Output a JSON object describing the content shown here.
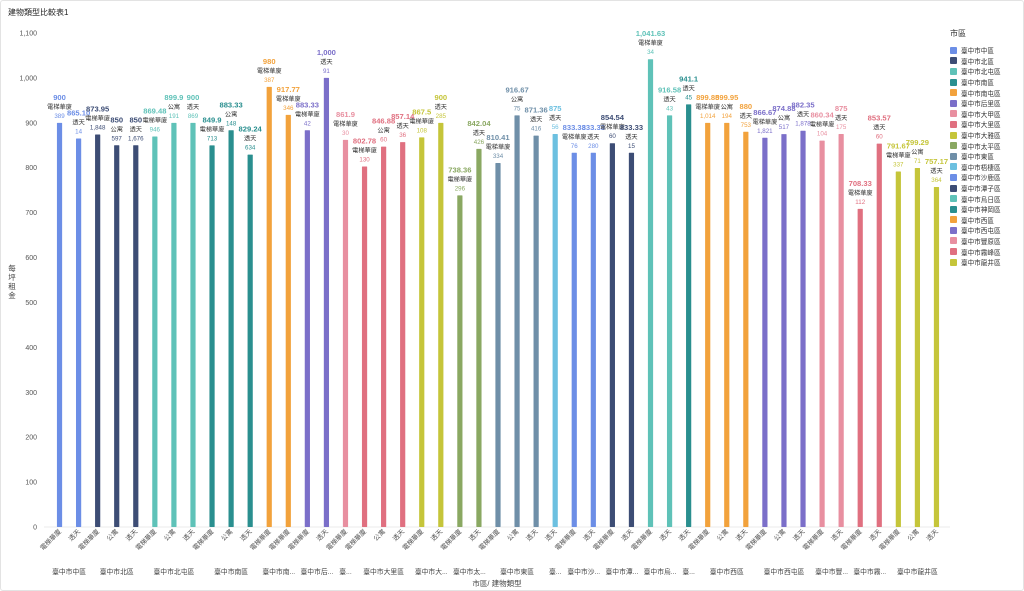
{
  "window": {
    "title": "建物類型比較表1"
  },
  "chart_data": {
    "type": "bar",
    "title": "建物類型比較表1",
    "xlabel": "市區/ 建物類型",
    "ylabel": "每坪租金",
    "ylim": [
      0,
      1100
    ],
    "yticks": [
      "0",
      "100",
      "200",
      "300",
      "400",
      "500",
      "600",
      "700",
      "800",
      "900",
      "1,000",
      "1,100"
    ],
    "legend": {
      "title": "市區",
      "position": "right"
    },
    "groups": [
      {
        "name": "臺中市中區",
        "color": "#6c8ee6",
        "bars": [
          {
            "type": "電梯華廈",
            "value": 900,
            "label": "900",
            "count": "389"
          },
          {
            "type": "透天",
            "value": 865.1,
            "label": "865.10",
            "count": "14"
          }
        ]
      },
      {
        "name": "臺中市北區",
        "color": "#3d4d75",
        "bars": [
          {
            "type": "電梯華廈",
            "value": 873.95,
            "label": "873.95",
            "count": "1,848"
          },
          {
            "type": "公寓",
            "value": 850,
            "label": "850",
            "count": "597"
          },
          {
            "type": "透天",
            "value": 850,
            "label": "850",
            "count": "1,676"
          }
        ]
      },
      {
        "name": "臺中市北屯區",
        "color": "#5fc2b8",
        "bars": [
          {
            "type": "電梯華廈",
            "value": 869.48,
            "label": "869.48",
            "count": "946"
          },
          {
            "type": "公寓",
            "value": 899.9,
            "label": "899.9",
            "count": "191"
          },
          {
            "type": "透天",
            "value": 900,
            "label": "900",
            "count": "869"
          }
        ]
      },
      {
        "name": "臺中市南區",
        "color": "#2a8f8f",
        "bars": [
          {
            "type": "電梯華廈",
            "value": 849.9,
            "label": "849.9",
            "count": "713"
          },
          {
            "type": "公寓",
            "value": 883.33,
            "label": "883.33",
            "count": "148"
          },
          {
            "type": "透天",
            "value": 829.24,
            "label": "829.24",
            "count": "634"
          }
        ]
      },
      {
        "name": "臺中市南屯區",
        "color": "#f2a23c",
        "bars": [
          {
            "type": "電梯華廈",
            "value": 980,
            "label": "980",
            "count": "387"
          },
          {
            "type": "電梯華廈",
            "value": 917.77,
            "label": "917.77",
            "count": "346"
          }
        ]
      },
      {
        "name": "臺中市后里區",
        "color": "#7b6fc9",
        "bars": [
          {
            "type": "電梯華廈",
            "value": 883.33,
            "label": "883.33",
            "count": "42"
          },
          {
            "type": "透天",
            "value": 1000,
            "label": "1,000",
            "count": "91"
          }
        ]
      },
      {
        "name": "臺中市大甲區",
        "color": "#e88fa0",
        "bars": [
          {
            "type": "電梯華廈",
            "value": 861.9,
            "label": "861.9",
            "count": "30"
          }
        ]
      },
      {
        "name": "臺中市大里區",
        "color": "#e07080",
        "bars": [
          {
            "type": "電梯華廈",
            "value": 802.78,
            "label": "802.78",
            "count": "130"
          },
          {
            "type": "公寓",
            "value": 846.88,
            "label": "846.88",
            "count": "60"
          },
          {
            "type": "透天",
            "value": 857.14,
            "label": "857.14",
            "count": "36"
          }
        ]
      },
      {
        "name": "臺中市大雅區",
        "color": "#c5c53a",
        "bars": [
          {
            "type": "電梯華廈",
            "value": 867.5,
            "label": "867.5",
            "count": "108"
          },
          {
            "type": "透天",
            "value": 900,
            "label": "900",
            "count": "285"
          }
        ]
      },
      {
        "name": "臺中市太平區",
        "color": "#8aa862",
        "bars": [
          {
            "type": "電梯華廈",
            "value": 738.36,
            "label": "738.36",
            "count": "296"
          },
          {
            "type": "透天",
            "value": 842.04,
            "label": "842.04",
            "count": "426"
          }
        ]
      },
      {
        "name": "臺中市東區",
        "color": "#6f8fa8",
        "bars": [
          {
            "type": "電梯華廈",
            "value": 810.41,
            "label": "810.41",
            "count": "334"
          },
          {
            "type": "公寓",
            "value": 916.67,
            "label": "916.67",
            "count": "75"
          },
          {
            "type": "透天",
            "value": 871.36,
            "label": "871.36",
            "count": "416"
          }
        ]
      },
      {
        "name": "臺中市梧棲區",
        "color": "#6cc0e0",
        "bars": [
          {
            "type": "透天",
            "value": 875,
            "label": "875",
            "count": "56"
          }
        ]
      },
      {
        "name": "臺中市沙鹿區",
        "color": "#6c8ee6",
        "bars": [
          {
            "type": "電梯華廈",
            "value": 833.33,
            "label": "833.33",
            "count": "76"
          },
          {
            "type": "透天",
            "value": 833.33,
            "label": "833.33",
            "count": "280"
          }
        ]
      },
      {
        "name": "臺中市潭子區",
        "color": "#3d4d75",
        "bars": [
          {
            "type": "電梯華廈",
            "value": 854.54,
            "label": "854.54",
            "count": "60"
          },
          {
            "type": "透天",
            "value": 833.33,
            "label": "833.33",
            "count": "15"
          }
        ]
      },
      {
        "name": "臺中市烏日區",
        "color": "#5fc2b8",
        "bars": [
          {
            "type": "電梯華廈",
            "value": 1041.63,
            "label": "1,041.63",
            "count": "34"
          },
          {
            "type": "透天",
            "value": 916.58,
            "label": "916.58",
            "count": "43"
          }
        ]
      },
      {
        "name": "臺中市神岡區",
        "color": "#2a8f8f",
        "bars": [
          {
            "type": "透天",
            "value": 941.1,
            "label": "941.1",
            "count": "45"
          }
        ]
      },
      {
        "name": "臺中市西區",
        "color": "#f2a23c",
        "bars": [
          {
            "type": "電梯華廈",
            "value": 899.85,
            "label": "899.85",
            "count": "1,014"
          },
          {
            "type": "公寓",
            "value": 899.95,
            "label": "899.95",
            "count": "194"
          },
          {
            "type": "透天",
            "value": 880,
            "label": "880",
            "count": "753"
          }
        ]
      },
      {
        "name": "臺中市西屯區",
        "color": "#7b6fc9",
        "bars": [
          {
            "type": "電梯華廈",
            "value": 866.67,
            "label": "866.67",
            "count": "1,821"
          },
          {
            "type": "公寓",
            "value": 874.88,
            "label": "874.88",
            "count": "517"
          },
          {
            "type": "透天",
            "value": 882.35,
            "label": "882.35",
            "count": "1,878"
          }
        ]
      },
      {
        "name": "臺中市豐原區",
        "color": "#e88fa0",
        "bars": [
          {
            "type": "電梯華廈",
            "value": 860.34,
            "label": "860.34",
            "count": "104"
          },
          {
            "type": "透天",
            "value": 875,
            "label": "875",
            "count": "175"
          }
        ]
      },
      {
        "name": "臺中市霧峰區",
        "color": "#e07080",
        "bars": [
          {
            "type": "電梯華廈",
            "value": 708.33,
            "label": "708.33",
            "count": "112"
          },
          {
            "type": "透天",
            "value": 853.57,
            "label": "853.57",
            "count": "60"
          }
        ]
      },
      {
        "name": "臺中市龍井區",
        "color": "#c5c53a",
        "bars": [
          {
            "type": "電梯華廈",
            "value": 791.67,
            "label": "791.67",
            "count": "337"
          },
          {
            "type": "公寓",
            "value": 799.29,
            "label": "799.29",
            "count": "71"
          },
          {
            "type": "透天",
            "value": 757.17,
            "label": "757.17",
            "count": "364"
          }
        ]
      }
    ],
    "group_axis_labels": [
      "臺中市中區",
      "臺中市北區",
      "臺中市北屯區",
      "臺中市南區",
      "臺中市南...",
      "臺中市后...",
      "臺...",
      "臺中市大里區",
      "臺中市大...",
      "臺中市太...",
      "臺中市東區",
      "臺...",
      "臺中市沙...",
      "臺中市潭...",
      "臺中市烏...",
      "臺...",
      "臺中市西區",
      "臺中市西屯區",
      "臺中市豐...",
      "臺中市霧...",
      "臺中市龍井區"
    ],
    "legend_entries": [
      {
        "label": "臺中市中區",
        "color": "#6c8ee6"
      },
      {
        "label": "臺中市北區",
        "color": "#3d4d75"
      },
      {
        "label": "臺中市北屯區",
        "color": "#5fc2b8"
      },
      {
        "label": "臺中市南區",
        "color": "#2a8f8f"
      },
      {
        "label": "臺中市南屯區",
        "color": "#f2a23c"
      },
      {
        "label": "臺中市后里區",
        "color": "#7b6fc9"
      },
      {
        "label": "臺中市大甲區",
        "color": "#e88fa0"
      },
      {
        "label": "臺中市大里區",
        "color": "#e07080"
      },
      {
        "label": "臺中市大雅區",
        "color": "#c5c53a"
      },
      {
        "label": "臺中市太平區",
        "color": "#8aa862"
      },
      {
        "label": "臺中市東區",
        "color": "#6f8fa8"
      },
      {
        "label": "臺中市梧棲區",
        "color": "#6cc0e0"
      },
      {
        "label": "臺中市沙鹿區",
        "color": "#6c8ee6"
      },
      {
        "label": "臺中市潭子區",
        "color": "#3d4d75"
      },
      {
        "label": "臺中市烏日區",
        "color": "#5fc2b8"
      },
      {
        "label": "臺中市神岡區",
        "color": "#2a8f8f"
      },
      {
        "label": "臺中市西區",
        "color": "#f2a23c"
      },
      {
        "label": "臺中市西屯區",
        "color": "#7b6fc9"
      },
      {
        "label": "臺中市豐原區",
        "color": "#e88fa0"
      },
      {
        "label": "臺中市霧峰區",
        "color": "#e07080"
      },
      {
        "label": "臺中市龍井區",
        "color": "#c5c53a"
      }
    ],
    "grid": false
  }
}
